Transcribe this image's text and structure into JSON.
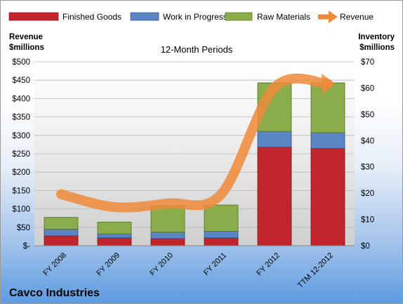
{
  "chart_data": {
    "type": "bar",
    "stacked": true,
    "title": "12-Month Periods",
    "company": "Cavco Industries",
    "left_axis": {
      "label_line1": "Revenue",
      "label_line2": "$millions",
      "range": [
        0,
        500
      ],
      "ticks": [
        0,
        50,
        100,
        150,
        200,
        250,
        300,
        350,
        400,
        450,
        500
      ],
      "tick_labels": [
        "$-",
        "$50",
        "$100",
        "$150",
        "$200",
        "$250",
        "$300",
        "$350",
        "$400",
        "$450",
        "$500"
      ]
    },
    "right_axis": {
      "label_line1": "Inventory",
      "label_line2": "$millions",
      "range": [
        0,
        70
      ],
      "ticks": [
        0,
        10,
        20,
        30,
        40,
        50,
        60,
        70
      ],
      "tick_labels": [
        "$0",
        "$10",
        "$20",
        "$30",
        "$40",
        "$50",
        "$60",
        "$70"
      ]
    },
    "categories": [
      "FY 2008",
      "FY 2009",
      "FY 2010",
      "FY 2011",
      "FY 2012",
      "TTM 12-2012"
    ],
    "bar_series": [
      {
        "name": "Finished Goods",
        "color": "#c0262c",
        "values": [
          3.8,
          3.0,
          2.7,
          3.0,
          37.5,
          37.0
        ]
      },
      {
        "name": "Work in Progress",
        "color": "#5b86c4",
        "values": [
          2.5,
          1.5,
          2.5,
          2.5,
          6.0,
          6.0
        ]
      },
      {
        "name": "Raw Materials",
        "color": "#8aac4a",
        "values": [
          4.5,
          4.5,
          10.0,
          10.0,
          18.5,
          19.0
        ]
      }
    ],
    "line_series": {
      "name": "Revenue",
      "color": "#ee8a3a",
      "values": [
        140,
        105,
        115,
        140,
        430,
        440
      ]
    },
    "grid": true,
    "legend_position": "top"
  }
}
